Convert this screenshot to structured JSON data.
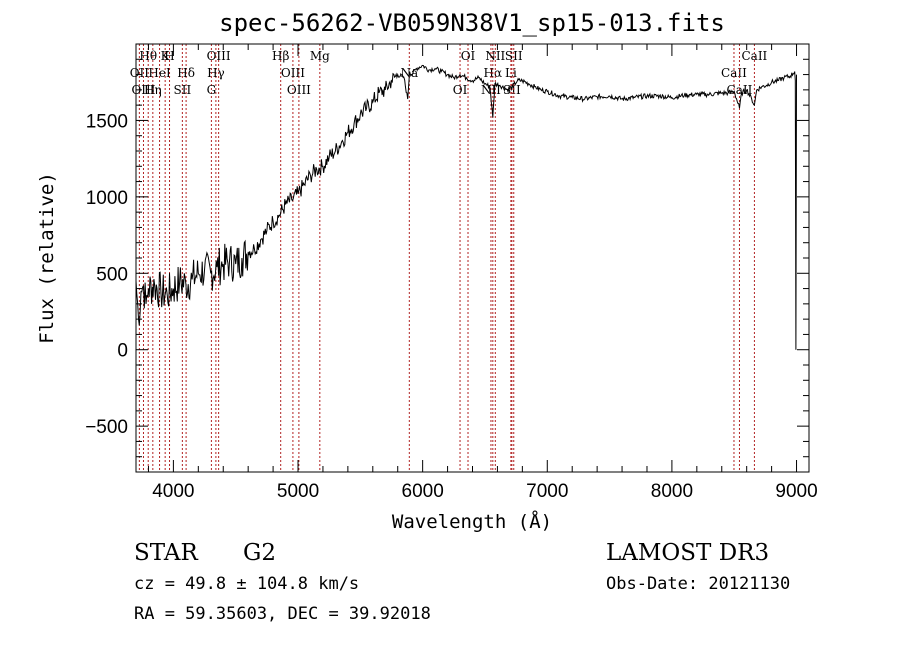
{
  "chart_data": {
    "type": "line",
    "title": "spec-56262-VB059N38V1_sp15-013.fits",
    "xlabel": "Wavelength (Å)",
    "ylabel": "Flux (relative)",
    "xlim": [
      3700,
      9100
    ],
    "ylim": [
      -800,
      2000
    ],
    "x_ticks": [
      4000,
      5000,
      6000,
      7000,
      8000,
      9000
    ],
    "y_ticks": [
      -500,
      0,
      500,
      1000,
      1500
    ],
    "x_tick_labels": [
      "4000",
      "5000",
      "6000",
      "7000",
      "8000",
      "9000"
    ],
    "y_tick_labels": [
      "−500",
      "0",
      "500",
      "1000",
      "1500"
    ],
    "grid": false,
    "series": [
      {
        "name": "spectrum",
        "color": "#000000",
        "x": [
          3700,
          3720,
          3740,
          3760,
          3780,
          3800,
          3850,
          3900,
          3950,
          4000,
          4050,
          4100,
          4150,
          4200,
          4250,
          4300,
          4350,
          4400,
          4450,
          4500,
          4550,
          4600,
          4650,
          4700,
          4750,
          4800,
          4850,
          4900,
          4950,
          5000,
          5050,
          5100,
          5150,
          5200,
          5250,
          5300,
          5350,
          5400,
          5450,
          5500,
          5550,
          5600,
          5650,
          5700,
          5750,
          5800,
          5850,
          5880,
          5895,
          5910,
          5950,
          6000,
          6050,
          6100,
          6150,
          6200,
          6250,
          6300,
          6350,
          6400,
          6450,
          6500,
          6540,
          6563,
          6580,
          6620,
          6680,
          6720,
          6760,
          6800,
          6850,
          6900,
          6950,
          7000,
          7100,
          7200,
          7300,
          7400,
          7500,
          7600,
          7700,
          7800,
          7900,
          8000,
          8100,
          8200,
          8300,
          8400,
          8450,
          8500,
          8542,
          8560,
          8600,
          8640,
          8662,
          8680,
          8720,
          8760,
          8800,
          8850,
          8900,
          8950,
          8985,
          8990,
          8995,
          9000
        ],
        "values": [
          450,
          200,
          380,
          420,
          300,
          400,
          420,
          380,
          360,
          400,
          440,
          430,
          460,
          500,
          520,
          500,
          540,
          560,
          580,
          560,
          600,
          640,
          660,
          720,
          780,
          840,
          880,
          950,
          980,
          1020,
          1080,
          1140,
          1180,
          1200,
          1260,
          1300,
          1360,
          1420,
          1480,
          1540,
          1580,
          1620,
          1680,
          1700,
          1760,
          1800,
          1780,
          1640,
          1820,
          1800,
          1840,
          1860,
          1830,
          1840,
          1820,
          1800,
          1780,
          1800,
          1780,
          1760,
          1780,
          1740,
          1720,
          1520,
          1740,
          1730,
          1700,
          1720,
          1760,
          1760,
          1740,
          1720,
          1700,
          1690,
          1660,
          1650,
          1640,
          1655,
          1660,
          1640,
          1650,
          1660,
          1660,
          1650,
          1665,
          1670,
          1670,
          1680,
          1680,
          1690,
          1580,
          1680,
          1700,
          1640,
          1600,
          1700,
          1720,
          1730,
          1750,
          1760,
          1780,
          1790,
          1820,
          1760,
          0,
          1800
        ]
      }
    ],
    "line_markers": [
      {
        "label": "Hθ",
        "wavelength": 3798
      },
      {
        "label": "OII",
        "wavelength": 3727
      },
      {
        "label": "OIII",
        "wavelength": 3760
      },
      {
        "label": "K",
        "wavelength": 3934
      },
      {
        "label": "HeI",
        "wavelength": 3889
      },
      {
        "label": "Hη",
        "wavelength": 3835
      },
      {
        "label": "H",
        "wavelength": 3969
      },
      {
        "label": "Hδ",
        "wavelength": 4102
      },
      {
        "label": "SII",
        "wavelength": 4072
      },
      {
        "label": "OIII",
        "wavelength": 4363
      },
      {
        "label": "Hγ",
        "wavelength": 4341
      },
      {
        "label": "G",
        "wavelength": 4305
      },
      {
        "label": "Hβ",
        "wavelength": 4861
      },
      {
        "label": "OIII",
        "wavelength": 4959
      },
      {
        "label": "OIII",
        "wavelength": 5007
      },
      {
        "label": "Mg",
        "wavelength": 5175
      },
      {
        "label": "Na",
        "wavelength": 5893
      },
      {
        "label": "OI",
        "wavelength": 6300
      },
      {
        "label": "OI",
        "wavelength": 6364
      },
      {
        "label": "Hα",
        "wavelength": 6563
      },
      {
        "label": "NII",
        "wavelength": 6548
      },
      {
        "label": "NII",
        "wavelength": 6583
      },
      {
        "label": "Li",
        "wavelength": 6708
      },
      {
        "label": "SII",
        "wavelength": 6716
      },
      {
        "label": "SII",
        "wavelength": 6731
      },
      {
        "label": "CaII",
        "wavelength": 8498
      },
      {
        "label": "CaII",
        "wavelength": 8542
      },
      {
        "label": "CaII",
        "wavelength": 8662
      }
    ],
    "line_marker_color": "#b22222"
  },
  "footer": {
    "object_class": "STAR",
    "subclass": "G2",
    "survey": "LAMOST DR3",
    "redshift": "cz = 49.8 ± 104.8 km/s",
    "obs_date": "Obs-Date: 20121130",
    "coords": "RA =  59.35603, DEC =  39.92018"
  }
}
